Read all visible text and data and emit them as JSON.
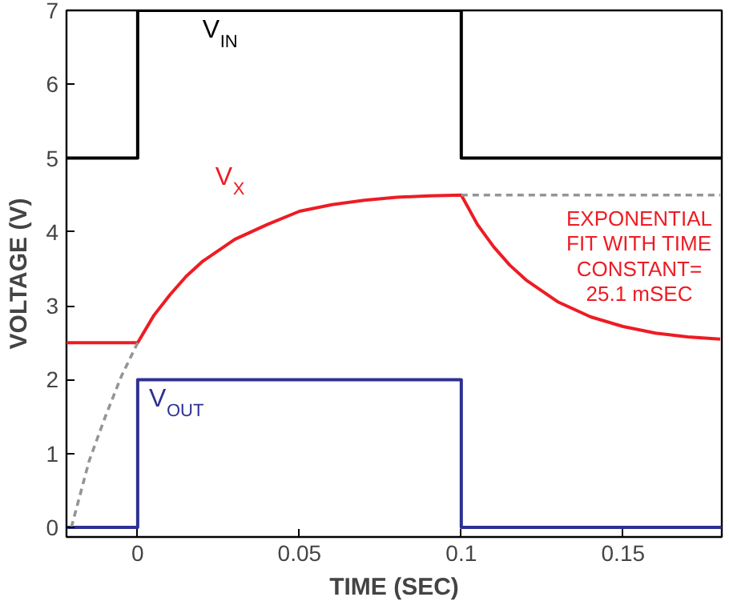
{
  "chart_data": {
    "type": "line",
    "xlabel": "TIME (SEC)",
    "ylabel": "VOLTAGE (V)",
    "xlim": [
      -0.022,
      0.1805
    ],
    "ylim": [
      -0.13,
      7
    ],
    "xticks": [
      0,
      0.05,
      0.1,
      0.15
    ],
    "yticks": [
      0,
      1,
      2,
      3,
      4,
      5,
      6,
      7
    ],
    "grid": false,
    "marker": "none",
    "series": [
      {
        "name": "V$_{IN}$",
        "color": "#000000",
        "x": [
          -0.022,
          0,
          0,
          0.1,
          0.1,
          0.1805
        ],
        "values": [
          5,
          5,
          7,
          7,
          5,
          5
        ]
      },
      {
        "name": "V$_{X}$",
        "color": "#ed1c24",
        "x": [
          -0.022,
          0,
          0.005,
          0.01,
          0.015,
          0.02,
          0.03,
          0.04,
          0.05,
          0.06,
          0.07,
          0.08,
          0.09,
          0.1,
          0.105,
          0.11,
          0.115,
          0.12,
          0.13,
          0.14,
          0.15,
          0.16,
          0.17,
          0.18
        ],
        "values": [
          2.5,
          2.5,
          2.87,
          3.15,
          3.4,
          3.6,
          3.9,
          4.1,
          4.28,
          4.37,
          4.43,
          4.47,
          4.49,
          4.5,
          4.1,
          3.8,
          3.55,
          3.35,
          3.05,
          2.85,
          2.72,
          2.63,
          2.58,
          2.55
        ]
      },
      {
        "name": "V$_{OUT}$",
        "color": "#2e3192",
        "x": [
          -0.022,
          0,
          0,
          0.1,
          0.1,
          0.1805
        ],
        "values": [
          0,
          0,
          2,
          2,
          0,
          0
        ]
      },
      {
        "color": "#939598",
        "line_style": "dashed",
        "x": [
          -0.0205,
          -0.015,
          -0.01,
          -0.005,
          0,
          0.05,
          0.1,
          0.18
        ],
        "values": [
          0,
          0.9,
          1.5,
          2.05,
          2.5,
          null,
          4.5,
          4.5
        ]
      }
    ],
    "annotations": [
      "EXPONENTIAL\nFIT WITH TIME\nCONSTANT=\n25.1 mSEC"
    ]
  }
}
